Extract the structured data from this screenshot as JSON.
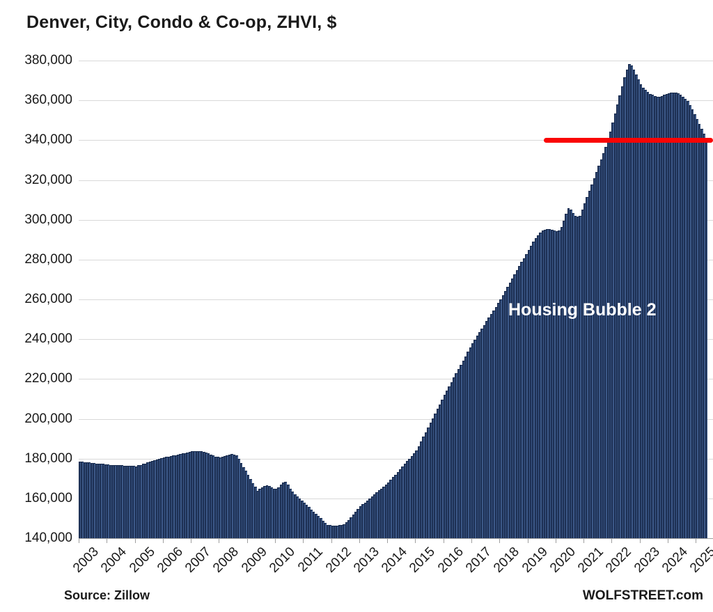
{
  "title": "Denver, City, Condo & Co-op, ZHVI, $",
  "annotation": {
    "label": "Housing Bubble 2",
    "color": "#ffffff"
  },
  "footer": {
    "source": "Source: Zillow",
    "brand": "WOLFSTREET.com"
  },
  "colors": {
    "bar_fill": "#3b5786",
    "bar_edge": "#1d3054",
    "bar_top": "#16294a",
    "gridline": "#d9d9d9",
    "axis": "#9f9f9f",
    "text": "#1a1a1a",
    "reference_line": "#fa0505"
  },
  "reference_line": {
    "value": 340000,
    "start_month_index": 199,
    "extends_to_right_edge": true
  },
  "chart_data": {
    "type": "bar",
    "title": "Denver, City, Condo & Co-op, ZHVI, $",
    "frequency": "monthly",
    "x_start": "2003-01",
    "x_end": "2025-05",
    "x_tick_labels": [
      "2003",
      "2004",
      "2005",
      "2006",
      "2007",
      "2008",
      "2009",
      "2010",
      "2011",
      "2012",
      "2013",
      "2014",
      "2015",
      "2016",
      "2017",
      "2018",
      "2019",
      "2020",
      "2021",
      "2022",
      "2023",
      "2024",
      "2025"
    ],
    "ylim": [
      140000,
      380000
    ],
    "y_tick_step": 20000,
    "y_tick_labels": [
      "140,000",
      "160,000",
      "180,000",
      "200,000",
      "220,000",
      "240,000",
      "260,000",
      "280,000",
      "300,000",
      "320,000",
      "340,000",
      "360,000",
      "380,000"
    ],
    "grid": true,
    "legend": "none",
    "values": [
      178500,
      178400,
      178300,
      178100,
      178000,
      177900,
      177800,
      177600,
      177500,
      177400,
      177300,
      177100,
      177000,
      176900,
      176900,
      176800,
      176700,
      176700,
      176600,
      176500,
      176500,
      176400,
      176300,
      176300,
      176200,
      176600,
      176900,
      177300,
      177600,
      178000,
      178400,
      178700,
      179100,
      179400,
      179800,
      180100,
      180500,
      180800,
      181000,
      181300,
      181500,
      181800,
      182100,
      182300,
      182600,
      182800,
      183100,
      183300,
      183600,
      183700,
      183800,
      183800,
      183700,
      183500,
      183200,
      182700,
      182100,
      181500,
      181000,
      180800,
      180700,
      180900,
      181300,
      181700,
      182000,
      182200,
      182100,
      181800,
      179800,
      177800,
      175800,
      173800,
      171800,
      169800,
      167800,
      165800,
      163800,
      164800,
      165600,
      166300,
      166500,
      166200,
      165600,
      165000,
      164800,
      165500,
      166800,
      167900,
      168300,
      167000,
      165000,
      163300,
      162200,
      161100,
      160000,
      158900,
      157800,
      156700,
      155600,
      154400,
      153300,
      152200,
      151100,
      150000,
      148900,
      147800,
      146800,
      146500,
      146400,
      146300,
      146400,
      146500,
      146700,
      147000,
      148000,
      149200,
      150500,
      151800,
      153200,
      154600,
      156000,
      157000,
      158000,
      159000,
      160000,
      161000,
      162000,
      163000,
      164000,
      165000,
      166000,
      167000,
      168000,
      169300,
      170700,
      172000,
      173300,
      174700,
      176000,
      177300,
      178700,
      180000,
      181300,
      182700,
      184000,
      186300,
      188700,
      191000,
      193300,
      195700,
      198000,
      200300,
      202700,
      205000,
      207300,
      209700,
      212000,
      214200,
      216300,
      218500,
      220700,
      222800,
      225000,
      227200,
      229300,
      231500,
      233700,
      235800,
      238000,
      239800,
      241700,
      243500,
      245300,
      247200,
      249000,
      250800,
      252700,
      254500,
      256300,
      258200,
      260000,
      262100,
      264200,
      266300,
      268300,
      270400,
      272500,
      274600,
      276700,
      278800,
      280800,
      282900,
      285000,
      287000,
      289000,
      290800,
      292300,
      293500,
      294500,
      295000,
      295200,
      295200,
      295000,
      294600,
      294300,
      294500,
      296500,
      299500,
      303000,
      305800,
      305000,
      303500,
      302000,
      301500,
      302000,
      305000,
      308200,
      311300,
      314500,
      317700,
      320800,
      324000,
      327200,
      330300,
      333500,
      336700,
      340000,
      344500,
      349000,
      353500,
      358000,
      362500,
      367000,
      371500,
      375500,
      378300,
      377500,
      375500,
      373000,
      370500,
      368000,
      366500,
      365200,
      364200,
      363300,
      362700,
      362200,
      361900,
      361800,
      362200,
      362700,
      363200,
      363600,
      363900,
      364000,
      364000,
      363600,
      362800,
      361800,
      360800,
      359800,
      357800,
      355500,
      353200,
      350800,
      348300,
      345800,
      343200,
      340600
    ]
  }
}
